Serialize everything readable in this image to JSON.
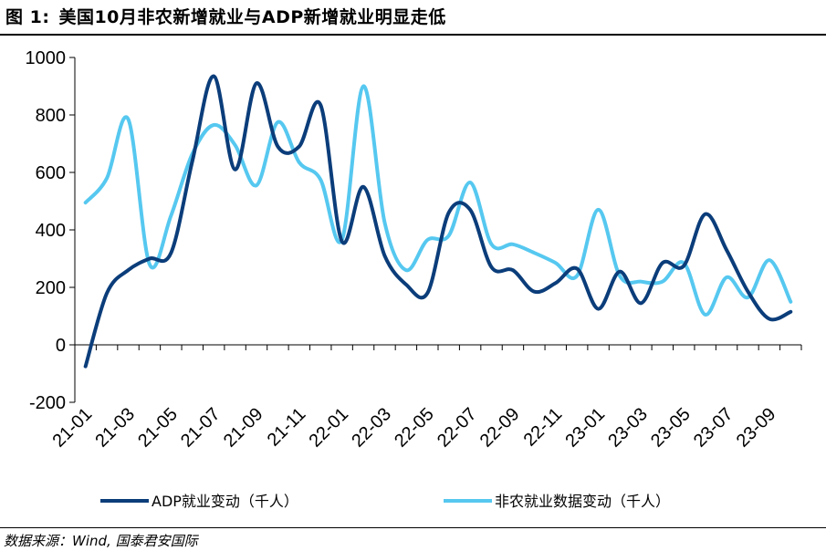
{
  "figure": {
    "label": "图 1:",
    "title": "美国10月非农新增就业与ADP新增就业明显走低"
  },
  "source": "数据来源：Wind, 国泰君安国际",
  "chart_data": {
    "type": "line",
    "title": "美国10月非农新增就业与ADP新增就业明显走低",
    "xlabel": "",
    "ylabel": "",
    "ylim": [
      -200,
      1000
    ],
    "yticks": [
      -200,
      0,
      200,
      400,
      600,
      800,
      1000
    ],
    "grid": false,
    "legend_position": "bottom",
    "x": [
      "21-01",
      "21-02",
      "21-03",
      "21-04",
      "21-05",
      "21-06",
      "21-07",
      "21-08",
      "21-09",
      "21-10",
      "21-11",
      "21-12",
      "22-01",
      "22-02",
      "22-03",
      "22-04",
      "22-05",
      "22-06",
      "22-07",
      "22-08",
      "22-09",
      "22-10",
      "22-11",
      "22-12",
      "23-01",
      "23-02",
      "23-03",
      "23-04",
      "23-05",
      "23-06",
      "23-07",
      "23-08",
      "23-09",
      "23-10"
    ],
    "xtick_labels": [
      "21-01",
      "21-03",
      "21-05",
      "21-07",
      "21-09",
      "21-11",
      "22-01",
      "22-03",
      "22-05",
      "22-07",
      "22-09",
      "22-11",
      "23-01",
      "23-03",
      "23-05",
      "23-07",
      "23-09"
    ],
    "series": [
      {
        "name": "ADP就业变动（千人）",
        "color": "#0b3d7a",
        "values": [
          -75,
          180,
          260,
          300,
          320,
          640,
          935,
          610,
          910,
          690,
          690,
          835,
          360,
          550,
          310,
          210,
          180,
          460,
          470,
          270,
          260,
          185,
          215,
          265,
          125,
          255,
          145,
          285,
          275,
          455,
          330,
          185,
          90,
          115
        ]
      },
      {
        "name": "非农就业数据变动（千人）",
        "color": "#56c8f0",
        "values": [
          495,
          580,
          785,
          280,
          450,
          665,
          765,
          695,
          555,
          775,
          635,
          575,
          365,
          900,
          425,
          260,
          365,
          380,
          565,
          350,
          350,
          320,
          285,
          240,
          470,
          240,
          220,
          220,
          285,
          105,
          235,
          165,
          295,
          150
        ]
      }
    ]
  }
}
